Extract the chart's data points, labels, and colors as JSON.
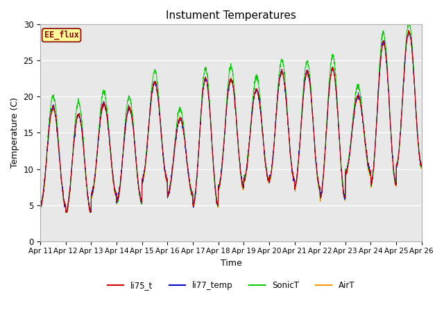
{
  "title": "Instument Temperatures",
  "xlabel": "Time",
  "ylabel": "Temperature (C)",
  "ylim": [
    0,
    30
  ],
  "xlim": [
    0,
    15
  ],
  "tick_labels": [
    "Apr 11",
    "Apr 12",
    "Apr 13",
    "Apr 14",
    "Apr 15",
    "Apr 16",
    "Apr 17",
    "Apr 18",
    "Apr 19",
    "Apr 20",
    "Apr 21",
    "Apr 22",
    "Apr 23",
    "Apr 24",
    "Apr 25",
    "Apr 26"
  ],
  "yticks": [
    0,
    5,
    10,
    15,
    20,
    25,
    30
  ],
  "colors": {
    "li75_t": "#cc0000",
    "li77_temp": "#0000cc",
    "SonicT": "#00cc00",
    "AirT": "#ff9900"
  },
  "annotation_text": "EE_flux",
  "annotation_color": "#8b0000",
  "annotation_bg": "#ffff99",
  "plot_bg": "#e8e8e8",
  "fig_bg": "#ffffff",
  "figsize": [
    6.4,
    4.8
  ],
  "dpi": 100
}
